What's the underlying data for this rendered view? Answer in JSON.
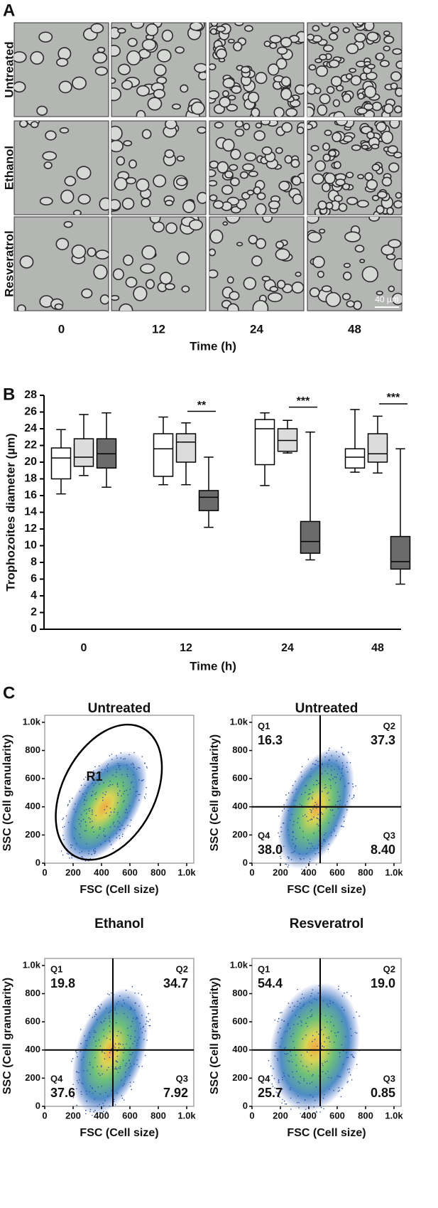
{
  "panel_labels": [
    "A",
    "B",
    "C"
  ],
  "micrographs": {
    "rows": [
      "Untreated",
      "Ethanol",
      "Resveratrol"
    ],
    "columns": [
      "0",
      "12",
      "24",
      "48"
    ],
    "x_label": "Time (h)",
    "scale_bar": "40 µm"
  },
  "chart_data": [
    {
      "type": "box",
      "y_label": "Trophozoites diameter (µm)",
      "x_label": "Time (h)",
      "categories": [
        "0",
        "12",
        "24",
        "48"
      ],
      "ylim": [
        0,
        28
      ],
      "yticks": [
        0,
        2,
        4,
        6,
        8,
        10,
        12,
        14,
        16,
        18,
        20,
        22,
        24,
        26,
        28
      ],
      "annotations": [
        null,
        "**",
        "***",
        "***"
      ],
      "series": [
        {
          "color": "#ffffff",
          "min": [
            16.2,
            17.3,
            17.2,
            18.8
          ],
          "q1": [
            18,
            18.3,
            19.7,
            19.3
          ],
          "median": [
            20.5,
            21.6,
            24,
            20.6
          ],
          "q3": [
            21.7,
            23.4,
            25.1,
            21.6
          ],
          "max": [
            23.9,
            25.4,
            25.9,
            26.3
          ]
        },
        {
          "color": "#dcdcdc",
          "min": [
            18.4,
            17.3,
            21.1,
            18.7
          ],
          "q1": [
            19.5,
            20,
            21.3,
            20
          ],
          "median": [
            20.6,
            22.4,
            22.6,
            21
          ],
          "q3": [
            22.8,
            23.4,
            24,
            23.4
          ],
          "max": [
            25.7,
            24.7,
            25,
            25.5
          ]
        },
        {
          "color": "#6b6b6b",
          "min": [
            17,
            12.2,
            8.3,
            5.4
          ],
          "q1": [
            19.3,
            14.2,
            9.1,
            7.2
          ],
          "median": [
            21,
            15.8,
            10.5,
            8.1
          ],
          "q3": [
            22.8,
            16.6,
            12.9,
            11.1
          ],
          "max": [
            25.9,
            20.6,
            23.6,
            21.6
          ]
        }
      ]
    },
    {
      "type": "flow",
      "title": "Untreated",
      "x_label": "FSC (Cell size)",
      "y_label": "SSC (Cell granularity)",
      "xlim": [
        0,
        1050
      ],
      "ylim": [
        0,
        1050
      ],
      "xticks": [
        0,
        200,
        400,
        600,
        800,
        {
          "value": 1000,
          "label": "1.0k"
        }
      ],
      "yticks": [
        0,
        200,
        400,
        600,
        800,
        {
          "value": 1000,
          "label": "1.0k"
        }
      ],
      "gate_label": "R1"
    },
    {
      "type": "flow",
      "title": "Untreated",
      "x_label": "FSC (Cell size)",
      "y_label": "SSC (Cell granularity)",
      "xlim": [
        0,
        1050
      ],
      "ylim": [
        0,
        1050
      ],
      "xticks": [
        0,
        200,
        400,
        600,
        800,
        {
          "value": 1000,
          "label": "1.0k"
        }
      ],
      "yticks": [
        0,
        200,
        400,
        600,
        800,
        {
          "value": 1000,
          "label": "1.0k"
        }
      ],
      "gate": {
        "x": 480,
        "y": 400
      },
      "quadrants": {
        "names": [
          "Q1",
          "Q2",
          "Q3",
          "Q4"
        ],
        "values": [
          16.3,
          37.3,
          8.4,
          38
        ],
        "value_labels": [
          "16.3",
          "37.3",
          "8.40",
          "38.0"
        ]
      }
    },
    {
      "type": "flow",
      "title": "Ethanol",
      "x_label": "FSC (Cell size)",
      "y_label": "SSC (Cell granularity)",
      "xlim": [
        0,
        1050
      ],
      "ylim": [
        0,
        1050
      ],
      "xticks": [
        0,
        200,
        400,
        600,
        800,
        {
          "value": 1000,
          "label": "1.0k"
        }
      ],
      "yticks": [
        0,
        200,
        400,
        600,
        800,
        {
          "value": 1000,
          "label": "1.0k"
        }
      ],
      "gate": {
        "x": 480,
        "y": 400
      },
      "quadrants": {
        "names": [
          "Q1",
          "Q2",
          "Q3",
          "Q4"
        ],
        "values": [
          19.8,
          34.7,
          7.92,
          37.6
        ],
        "value_labels": [
          "19.8",
          "34.7",
          "7.92",
          "37.6"
        ]
      }
    },
    {
      "type": "flow",
      "title": "Resveratrol",
      "x_label": "FSC (Cell size)",
      "y_label": "SSC (Cell granularity)",
      "xlim": [
        0,
        1050
      ],
      "ylim": [
        0,
        1050
      ],
      "xticks": [
        0,
        200,
        400,
        600,
        800,
        {
          "value": 1000,
          "label": "1.0k"
        }
      ],
      "yticks": [
        0,
        200,
        400,
        600,
        800,
        {
          "value": 1000,
          "label": "1.0k"
        }
      ],
      "gate": {
        "x": 480,
        "y": 400
      },
      "quadrants": {
        "names": [
          "Q1",
          "Q2",
          "Q3",
          "Q4"
        ],
        "values": [
          54.4,
          19,
          0.85,
          25.7
        ],
        "value_labels": [
          "54.4",
          "19.0",
          "0.85",
          "25.7"
        ]
      }
    }
  ]
}
